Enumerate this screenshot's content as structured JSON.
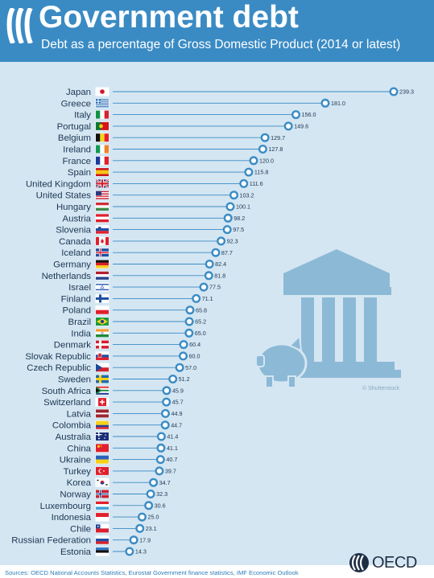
{
  "header": {
    "title": "Government debt",
    "subtitle": "Debt as a percentage of Gross Domestic Product (2014 or latest)"
  },
  "chart_data": {
    "type": "dot",
    "categories": [
      "Japan",
      "Greece",
      "Italy",
      "Portugal",
      "Belgium",
      "Ireland",
      "France",
      "Spain",
      "United Kingdom",
      "United States",
      "Hungary",
      "Austria",
      "Slovenia",
      "Canada",
      "Iceland",
      "Germany",
      "Netherlands",
      "Israel",
      "Finland",
      "Poland",
      "Brazil",
      "India",
      "Denmark",
      "Slovak Republic",
      "Czech Republic",
      "Sweden",
      "South Africa",
      "Switzerland",
      "Latvia",
      "Colombia",
      "Australia",
      "China",
      "Ukraine",
      "Turkey",
      "Korea",
      "Norway",
      "Luxembourg",
      "Indonesia",
      "Chile",
      "Russian Federation",
      "Estonia"
    ],
    "values": [
      239.3,
      181.0,
      156.0,
      149.6,
      129.7,
      127.8,
      120.0,
      115.8,
      111.6,
      103.2,
      100.1,
      98.2,
      97.5,
      92.3,
      87.7,
      82.4,
      81.8,
      77.5,
      71.1,
      65.8,
      65.2,
      65.0,
      60.4,
      60.0,
      57.0,
      51.2,
      45.9,
      45.7,
      44.9,
      44.7,
      41.4,
      41.1,
      40.7,
      39.7,
      34.7,
      32.3,
      30.6,
      25.0,
      23.1,
      17.9,
      14.3
    ],
    "value_labels": [
      "239.3",
      "181.0",
      "156.0",
      "149.6",
      "129.7",
      "127.8",
      "120.0",
      "115.8",
      "111.6",
      "103.2",
      "100.1",
      "98.2",
      "97.5",
      "92.3",
      "87.7",
      "82.4",
      "81.8",
      "77.5",
      "71.1",
      "65.8",
      "65.2",
      "65.0",
      "60.4",
      "60.0",
      "57.0",
      "51.2",
      "45.9",
      "45.7",
      "44.9",
      "44.7",
      "41.4",
      "41.1",
      "40.7",
      "39.7",
      "34.7",
      "32.3",
      "30.6",
      "25.0",
      "23.1",
      "17.9",
      "14.3"
    ],
    "flags": [
      "japan-flag",
      "greece-flag",
      "italy-flag",
      "portugal-flag",
      "belgium-flag",
      "ireland-flag",
      "france-flag",
      "spain-flag",
      "united-kingdom-flag",
      "united-states-flag",
      "hungary-flag",
      "austria-flag",
      "slovenia-flag",
      "canada-flag",
      "iceland-flag",
      "germany-flag",
      "netherlands-flag",
      "israel-flag",
      "finland-flag",
      "poland-flag",
      "brazil-flag",
      "india-flag",
      "denmark-flag",
      "slovak-republic-flag",
      "czech-republic-flag",
      "sweden-flag",
      "south-africa-flag",
      "switzerland-flag",
      "latvia-flag",
      "colombia-flag",
      "australia-flag",
      "china-flag",
      "ukraine-flag",
      "turkey-flag",
      "korea-flag",
      "norway-flag",
      "luxembourg-flag",
      "indonesia-flag",
      "chile-flag",
      "russian-federation-flag",
      "estonia-flag"
    ],
    "xlim": [
      0,
      240
    ],
    "grid": false,
    "colors": {
      "line": "#3a8bc4",
      "marker": "#3a8bc4",
      "marker_fill": "#ffffff",
      "background": "#d4e6f2",
      "header": "#3a8bc4",
      "illustration": "#8cb9d6"
    }
  },
  "illustration": {
    "icon": "bank-building-and-piggy-bank-icon",
    "credit": "© Shutterstock"
  },
  "footer": {
    "sources": "Sources: OECD National Accounts Statistics, Eurostat Government finance statistics, IMF Economic Outlook",
    "logo_text": "OECD"
  }
}
